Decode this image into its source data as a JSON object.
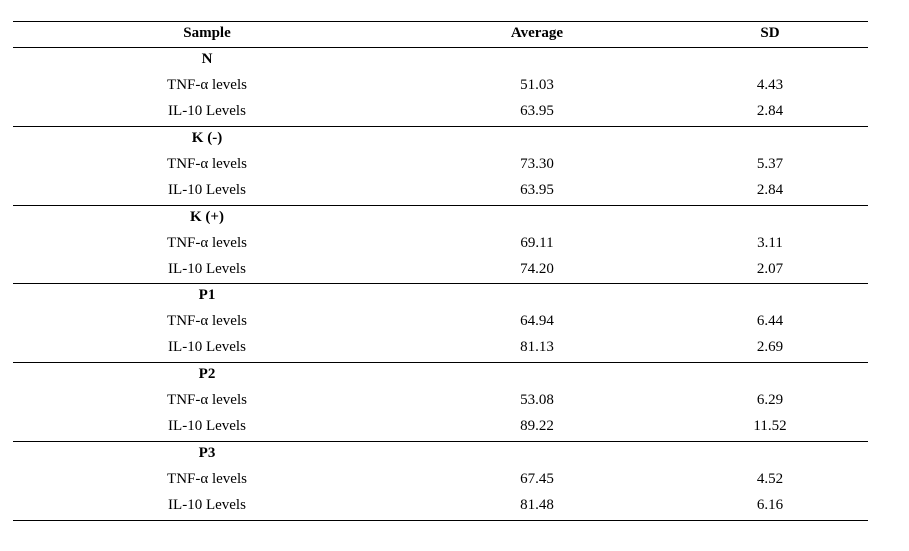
{
  "table": {
    "header": [
      "Sample",
      "Average",
      "SD"
    ],
    "groups": [
      {
        "name": "N",
        "rows": [
          [
            "TNF-α levels",
            "51.03",
            "4.43"
          ],
          [
            "IL-10 Levels",
            "63.95",
            "2.84"
          ]
        ]
      },
      {
        "name": "K (-)",
        "rows": [
          [
            "TNF-α levels",
            "73.30",
            "5.37"
          ],
          [
            "IL-10 Levels",
            "63.95",
            "2.84"
          ]
        ]
      },
      {
        "name": "K (+)",
        "rows": [
          [
            "TNF-α levels",
            "69.11",
            "3.11"
          ],
          [
            "IL-10 Levels",
            "74.20",
            "2.07"
          ]
        ]
      },
      {
        "name": "P1",
        "rows": [
          [
            "TNF-α levels",
            "64.94",
            "6.44"
          ],
          [
            "IL-10 Levels",
            "81.13",
            "2.69"
          ]
        ]
      },
      {
        "name": "P2",
        "rows": [
          [
            "TNF-α levels",
            "53.08",
            "6.29"
          ],
          [
            "IL-10 Levels",
            "89.22",
            "11.52"
          ]
        ]
      },
      {
        "name": "P3",
        "rows": [
          [
            "TNF-α levels",
            "67.45",
            "4.52"
          ],
          [
            "IL-10 Levels",
            "81.48",
            "6.16"
          ]
        ]
      }
    ]
  }
}
